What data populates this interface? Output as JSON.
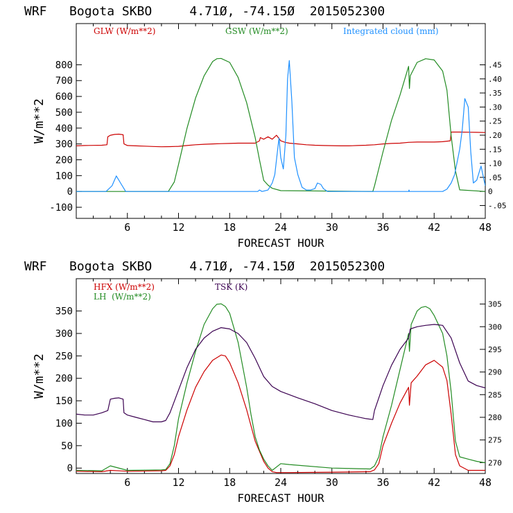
{
  "chart_data": [
    {
      "type": "line",
      "title": "WRF   Bogota SKBO     4.71Ø, -74.15Ø  2015052300",
      "xlabel": "FORECAST HOUR",
      "ylabel": "W/m**2",
      "xlim": [
        0,
        48
      ],
      "ylim": [
        -170,
        1060
      ],
      "xticks": [
        6,
        12,
        18,
        24,
        30,
        36,
        42,
        48
      ],
      "xtick_labels": [
        "6",
        "12",
        "18",
        "24",
        "30",
        "36",
        "42",
        "48"
      ],
      "yticks": [
        -100,
        0,
        100,
        200,
        300,
        400,
        500,
        600,
        700,
        800
      ],
      "ytick_labels": [
        "-100",
        "0",
        "100",
        "200",
        "300",
        "400",
        "500",
        "600",
        "700",
        "800"
      ],
      "y2lim": [
        -0.0957,
        0.5966
      ],
      "y2ticks": [
        -0.05,
        0,
        0.05,
        0.1,
        0.15,
        0.2,
        0.25,
        0.3,
        0.35,
        0.4,
        0.45
      ],
      "y2tick_labels": [
        "-.05",
        "0",
        ".05",
        ".10",
        ".15",
        ".20",
        ".25",
        ".30",
        ".35",
        ".40",
        ".45"
      ],
      "legend": [
        {
          "label": "GLW (W/m**2)",
          "color": "#cc0000"
        },
        {
          "label": "GSW (W/m**2)",
          "color": "#228b22"
        },
        {
          "label": "Integrated cloud (mm)",
          "color": "#1e90ff"
        }
      ],
      "series": [
        {
          "name": "GLW (W/m**2)",
          "color": "#cc0000",
          "axis": "left",
          "x": [
            0,
            1,
            2,
            3,
            3.6,
            3.7,
            4,
            4.5,
            5,
            5.5,
            5.6,
            6,
            7,
            8,
            9,
            10,
            11,
            12,
            13,
            14,
            15,
            16,
            17,
            18,
            19,
            20,
            21,
            21.5,
            21.6,
            22,
            22.5,
            23,
            23.5,
            24,
            24.5,
            25,
            26,
            27,
            28,
            29,
            30,
            31,
            32,
            33,
            34,
            35,
            36,
            37,
            38,
            39,
            40,
            41,
            42,
            43,
            43.9,
            44,
            45,
            46,
            47,
            48
          ],
          "y": [
            288,
            290,
            291,
            292,
            295,
            345,
            355,
            360,
            362,
            358,
            300,
            290,
            288,
            286,
            284,
            282,
            283,
            285,
            290,
            295,
            298,
            300,
            302,
            303,
            305,
            305,
            305,
            320,
            340,
            330,
            345,
            330,
            355,
            320,
            310,
            305,
            300,
            295,
            292,
            290,
            289,
            288,
            288,
            290,
            292,
            295,
            300,
            303,
            305,
            310,
            312,
            312,
            312,
            314,
            320,
            375,
            375,
            374,
            373,
            372
          ]
        },
        {
          "name": "GSW (W/m**2)",
          "color": "#228b22",
          "axis": "left",
          "x": [
            0,
            10.8,
            11.5,
            12,
            13,
            14,
            15,
            16,
            16.5,
            17,
            18,
            19,
            20,
            21,
            21.5,
            22,
            22.5,
            23,
            24,
            34.8,
            35,
            36,
            37,
            38,
            39,
            39.1,
            39.2,
            40,
            41,
            42,
            43,
            43.5,
            44,
            44.5,
            45,
            48
          ],
          "y": [
            0,
            0,
            60,
            170,
            400,
            590,
            730,
            820,
            838,
            840,
            815,
            720,
            560,
            340,
            200,
            70,
            40,
            20,
            5,
            0,
            35,
            250,
            450,
            610,
            790,
            650,
            730,
            815,
            838,
            830,
            760,
            640,
            350,
            130,
            10,
            0
          ]
        },
        {
          "name": "Integrated cloud (mm)",
          "color": "#1e90ff",
          "axis": "right",
          "x": [
            0,
            3.5,
            4.2,
            4.7,
            5.2,
            5.8,
            6,
            21.3,
            21.5,
            21.8,
            22.5,
            23,
            23.3,
            23.6,
            23.8,
            24,
            24.3,
            24.6,
            24.8,
            25,
            25.3,
            25.6,
            26,
            26.5,
            27,
            27.5,
            28,
            28.3,
            28.7,
            29,
            29.5,
            39,
            39.05,
            39.1,
            43,
            43.5,
            44,
            44.4,
            44.8,
            45,
            45.3,
            45.6,
            46,
            46.3,
            46.6,
            47,
            47.5,
            48
          ],
          "y": [
            0,
            0,
            0.02,
            0.055,
            0.03,
            0,
            0,
            0,
            0.005,
            0,
            0.005,
            0.03,
            0.06,
            0.14,
            0.19,
            0.12,
            0.08,
            0.2,
            0.4,
            0.465,
            0.32,
            0.12,
            0.06,
            0.015,
            0.005,
            0.005,
            0.01,
            0.03,
            0.025,
            0.01,
            0,
            0,
            0.005,
            0,
            0,
            0.008,
            0.03,
            0.06,
            0.12,
            0.15,
            0.22,
            0.33,
            0.3,
            0.14,
            0.03,
            0.04,
            0.09,
            0.02
          ]
        }
      ]
    },
    {
      "type": "line",
      "title": "WRF   Bogota SKBO     4.71Ø, -74.15Ø  2015052300",
      "xlabel": "FORECAST HOUR",
      "ylabel": "W/m**2",
      "xlim": [
        0,
        48
      ],
      "ylim": [
        -12,
        422
      ],
      "xticks": [
        6,
        12,
        18,
        24,
        30,
        36,
        42,
        48
      ],
      "xtick_labels": [
        "6",
        "12",
        "18",
        "24",
        "30",
        "36",
        "42",
        "48"
      ],
      "yticks": [
        0,
        50,
        100,
        150,
        200,
        250,
        300,
        350
      ],
      "ytick_labels": [
        "0",
        "50",
        "100",
        "150",
        "200",
        "250",
        "300",
        "350"
      ],
      "y2lim": [
        267.6,
        310.6
      ],
      "y2ticks": [
        270,
        275,
        280,
        285,
        290,
        295,
        300,
        305
      ],
      "y2tick_labels": [
        "270",
        "275",
        "280",
        "285",
        "290",
        "295",
        "300",
        "305"
      ],
      "legend": [
        {
          "label": "HFX (W/m**2)",
          "color": "#cc0000"
        },
        {
          "label": "LH  (W/m**2)",
          "color": "#228b22"
        },
        {
          "label": "TSK (K)",
          "color": "#3a0050"
        }
      ],
      "series": [
        {
          "name": "HFX (W/m**2)",
          "color": "#cc0000",
          "axis": "left",
          "x": [
            0,
            3,
            4,
            6,
            10,
            10.5,
            11,
            11.5,
            12,
            13,
            14,
            15,
            16,
            17,
            17.5,
            18,
            19,
            20,
            21,
            22,
            22.5,
            23,
            23.5,
            24,
            25,
            30,
            34.5,
            35,
            35.5,
            36,
            37,
            38,
            39,
            39.1,
            39.3,
            40,
            41,
            42,
            43,
            43.5,
            44,
            44.5,
            45,
            46,
            47,
            48
          ],
          "y": [
            -7,
            -8,
            -5,
            -7,
            -6,
            -5,
            5,
            30,
            70,
            130,
            180,
            215,
            240,
            252,
            250,
            235,
            190,
            130,
            60,
            15,
            0,
            -8,
            -10,
            -10,
            -10,
            -9,
            -8,
            -4,
            10,
            50,
            100,
            145,
            180,
            140,
            190,
            205,
            230,
            240,
            225,
            195,
            120,
            30,
            5,
            -5,
            -5,
            -5
          ]
        },
        {
          "name": "LH  (W/m**2)",
          "color": "#228b22",
          "axis": "left",
          "x": [
            0,
            3,
            4,
            6,
            10,
            10.5,
            11,
            11.5,
            12,
            13,
            14,
            15,
            16,
            16.5,
            17,
            17.5,
            18,
            19,
            20,
            20.5,
            21,
            21.5,
            22,
            22.5,
            23,
            24,
            25,
            30,
            34.5,
            35,
            35.5,
            36,
            37,
            38,
            39,
            39.1,
            39.3,
            40,
            40.5,
            41,
            41.5,
            42,
            43,
            43.5,
            44,
            44.5,
            45,
            46,
            47,
            48
          ],
          "y": [
            -5,
            -6,
            5,
            -5,
            -4,
            -3,
            10,
            50,
            110,
            190,
            260,
            320,
            355,
            365,
            366,
            360,
            345,
            280,
            180,
            120,
            70,
            40,
            20,
            5,
            -5,
            10,
            8,
            0,
            -2,
            5,
            25,
            70,
            140,
            220,
            300,
            260,
            320,
            350,
            358,
            360,
            355,
            340,
            300,
            250,
            170,
            60,
            25,
            20,
            15,
            12
          ]
        },
        {
          "name": "TSK (K)",
          "color": "#3a0050",
          "axis": "right",
          "x": [
            0,
            1,
            2,
            3,
            3.7,
            4,
            4.5,
            5,
            5.5,
            5.6,
            6,
            7,
            8,
            9,
            10,
            10.5,
            11,
            12,
            13,
            14,
            15,
            16,
            17,
            18,
            19,
            20,
            21,
            22,
            23,
            24,
            25,
            26,
            28,
            30,
            32,
            34,
            34.8,
            35,
            36,
            37,
            38,
            39,
            39.2,
            40,
            41,
            42,
            43,
            44,
            45,
            46,
            47,
            48
          ],
          "y": [
            280.7,
            280.5,
            280.5,
            281,
            281.5,
            284,
            284.2,
            284.3,
            284,
            281,
            280.5,
            280,
            279.5,
            279,
            279,
            279.3,
            281,
            286,
            291,
            295,
            297.5,
            299,
            299.8,
            299.5,
            298.5,
            296.5,
            293,
            289,
            286.8,
            285.7,
            285,
            284.3,
            283,
            281.5,
            280.5,
            279.7,
            279.5,
            281.5,
            287,
            291.5,
            295,
            297.5,
            299.5,
            300,
            300.3,
            300.5,
            300.3,
            297.5,
            292,
            288,
            287,
            286.5
          ]
        }
      ]
    }
  ]
}
